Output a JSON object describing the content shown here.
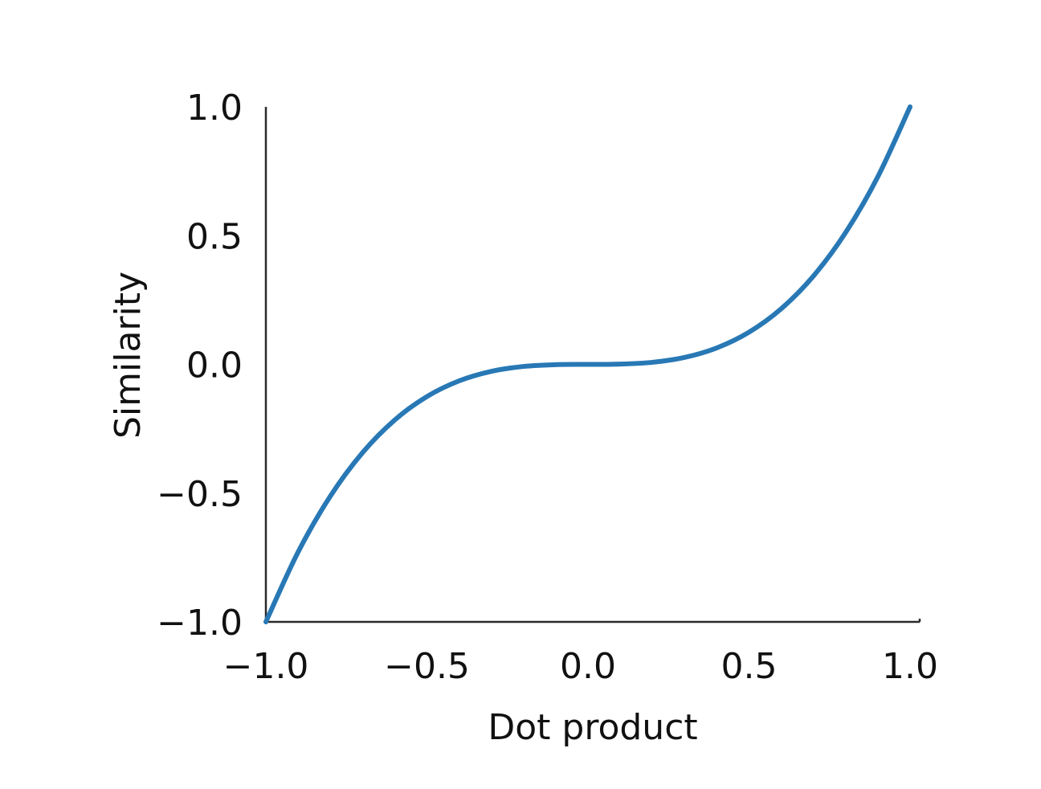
{
  "chart_data": {
    "type": "line",
    "title": "",
    "xlabel": "Dot product",
    "ylabel": "Similarity",
    "xlim": [
      -1.0,
      1.0
    ],
    "ylim": [
      -1.0,
      1.0
    ],
    "x_ticks": [
      "−1.0",
      "−0.5",
      "0.0",
      "0.5",
      "1.0"
    ],
    "x_tick_values": [
      -1.0,
      -0.5,
      0.0,
      0.5,
      1.0
    ],
    "y_ticks": [
      "−1.0",
      "−0.5",
      "0.0",
      "0.5",
      "1.0"
    ],
    "y_tick_values": [
      -1.0,
      -0.5,
      0.0,
      0.5,
      1.0
    ],
    "grid": false,
    "series": [
      {
        "color": "#2878b5",
        "x": [
          -1.0,
          -0.9,
          -0.8,
          -0.7,
          -0.6,
          -0.5,
          -0.4,
          -0.3,
          -0.2,
          -0.1,
          0.0,
          0.1,
          0.2,
          0.3,
          0.4,
          0.5,
          0.6,
          0.7,
          0.8,
          0.9,
          1.0
        ],
        "y": [
          -1.0,
          -0.729,
          -0.512,
          -0.343,
          -0.216,
          -0.125,
          -0.064,
          -0.027,
          -0.008,
          -0.001,
          0.0,
          0.001,
          0.008,
          0.027,
          0.064,
          0.125,
          0.216,
          0.343,
          0.512,
          0.729,
          1.0
        ]
      }
    ]
  }
}
